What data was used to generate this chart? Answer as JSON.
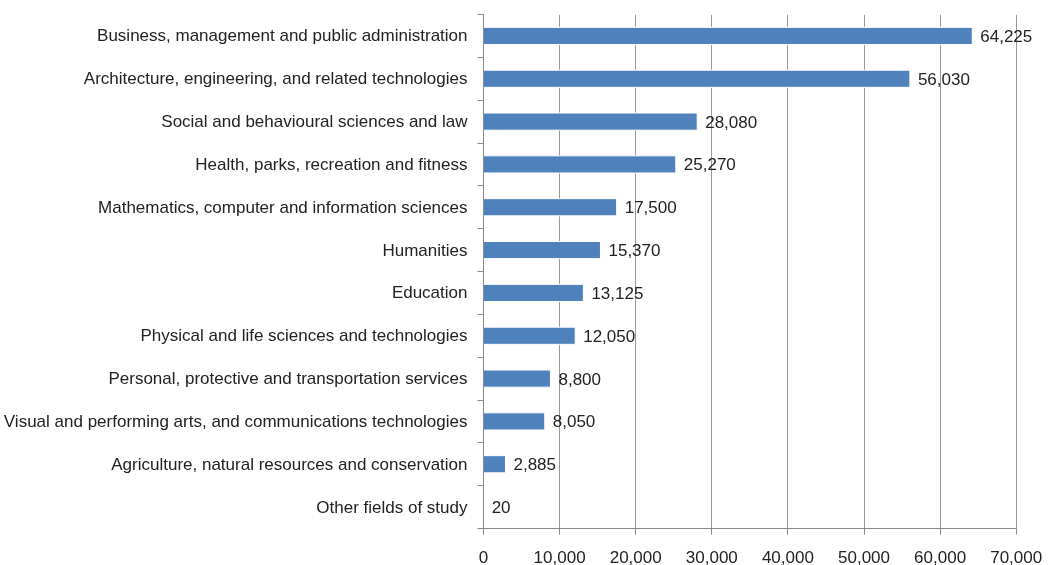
{
  "chart_data": {
    "type": "bar",
    "orientation": "horizontal",
    "categories": [
      "Business, management and public administration",
      "Architecture, engineering, and related technologies",
      "Social and behavioural sciences and law",
      "Health, parks, recreation and fitness",
      "Mathematics, computer and information sciences",
      "Humanities",
      "Education",
      "Physical and life sciences and technologies",
      "Personal, protective and transportation services",
      "Visual and performing arts, and communications technologies",
      "Agriculture, natural resources and conservation",
      "Other fields of study"
    ],
    "values": [
      64225,
      56030,
      28080,
      25270,
      17500,
      15370,
      13125,
      12050,
      8800,
      8050,
      2885,
      20
    ],
    "value_labels": [
      "64,225",
      "56,030",
      "28,080",
      "25,270",
      "17,500",
      "15,370",
      "13,125",
      "12,050",
      "8,800",
      "8,050",
      "2,885",
      "20"
    ],
    "color": "#4f81bd",
    "xlim": [
      0,
      70000
    ],
    "xticks": [
      0,
      {
        "value": 10000,
        "label": "10,000"
      },
      {
        "value": 20000,
        "label": "20,000"
      },
      {
        "value": 30000,
        "label": "30,000"
      },
      {
        "value": 40000,
        "label": "40,000"
      },
      {
        "value": 50000,
        "label": "50,000"
      },
      {
        "value": 60000,
        "label": "60,000"
      },
      {
        "value": 70000,
        "label": "70,000"
      }
    ],
    "grid": "x"
  }
}
